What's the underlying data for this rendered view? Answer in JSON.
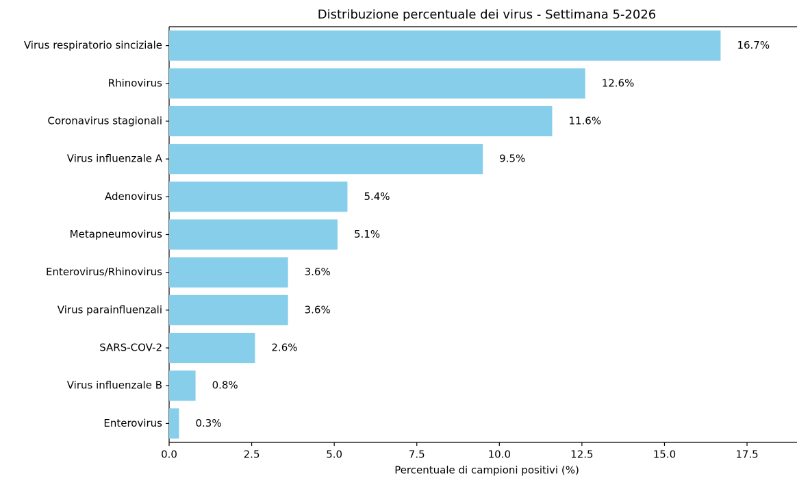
{
  "chart_data": {
    "type": "barh",
    "title": "Distribuzione percentuale dei virus - Settimana 5-2026",
    "x_label": "Percentuale di campioni positivi (%)",
    "categories": [
      "Virus respiratorio sinciziale",
      "Rhinovirus",
      "Coronavirus stagionali",
      "Virus influenzale A",
      "Adenovirus",
      "Metapneumovirus",
      "Enterovirus/Rhinovirus",
      "Virus parainfluenzali",
      "SARS-COV-2",
      "Virus influenzale B",
      "Enterovirus"
    ],
    "values": [
      16.7,
      12.6,
      11.6,
      9.5,
      5.4,
      5.1,
      3.6,
      3.6,
      2.6,
      0.8,
      0.3
    ],
    "value_labels": [
      "16.7%",
      "12.6%",
      "11.6%",
      "9.5%",
      "5.4%",
      "5.1%",
      "3.6%",
      "3.6%",
      "2.6%",
      "0.8%",
      "0.3%"
    ],
    "color": "#87ceeb",
    "xlim": [
      0,
      19
    ],
    "xticks": [
      {
        "value": 0,
        "label": "0.0"
      },
      2.5,
      {
        "value": 5,
        "label": "5.0"
      },
      7.5,
      {
        "value": 10,
        "label": "10.0"
      },
      12.5,
      {
        "value": 15,
        "label": "15.0"
      },
      17.5
    ],
    "grid": false
  }
}
